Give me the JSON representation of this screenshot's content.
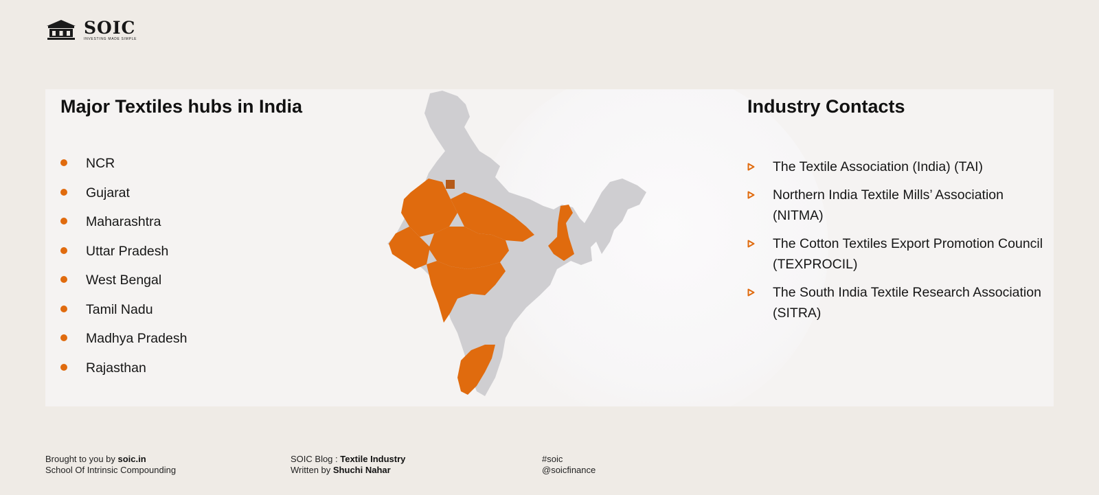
{
  "brand": {
    "name": "SOIC",
    "tagline": "INVESTING MADE SIMPLE",
    "icon": "building-icon",
    "accent_color": "#e06b0e"
  },
  "hubs": {
    "title": "Major Textiles hubs in India",
    "items": [
      "NCR",
      "Gujarat",
      "Maharashtra",
      "Uttar Pradesh",
      "West Bengal",
      "Tamil Nadu",
      "Madhya Pradesh",
      "Rajasthan"
    ]
  },
  "map": {
    "icon": "india-map",
    "highlight_color": "#e06b0e",
    "base_color": "#cfced1"
  },
  "contacts": {
    "title": "Industry Contacts",
    "items": [
      "The Textile Association (India) (TAI)",
      "Northern India Textile Mills’ Association (NITMA)",
      "The Cotton Textiles Export Promotion Council (TEXPROCIL)",
      "The South India Textile Research Association (SITRA)"
    ]
  },
  "footer": {
    "brought_prefix": "Brought to you by ",
    "brought_site": "soic.in",
    "school": "School Of Intrinsic Compounding",
    "blog_prefix": "SOIC Blog : ",
    "blog_topic": "Textile Industry",
    "written_prefix": "Written by ",
    "author": "Shuchi Nahar",
    "hashtag": "#soic",
    "handle": "@soicfinance"
  }
}
